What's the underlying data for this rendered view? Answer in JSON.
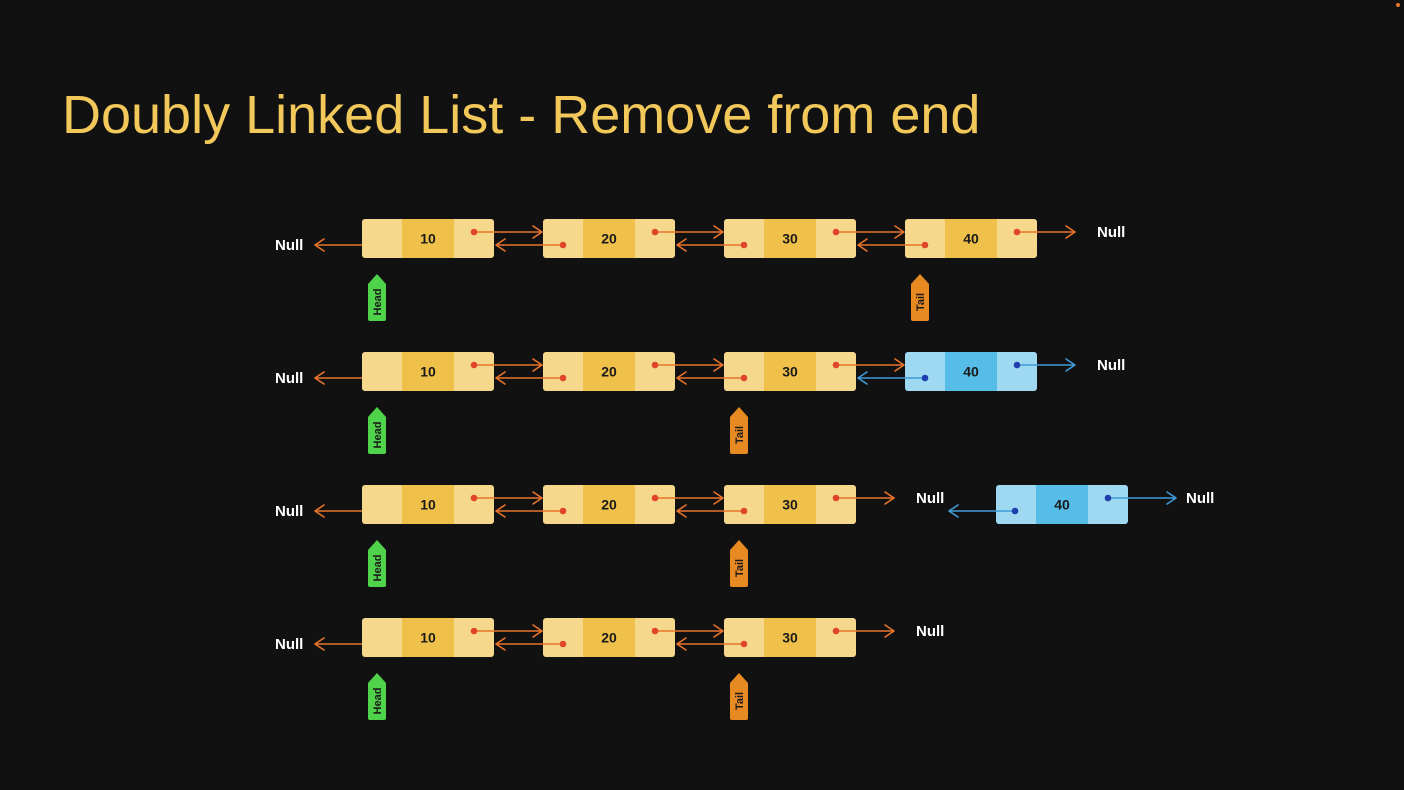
{
  "title": "Doubly Linked List - Remove from end",
  "labels": {
    "null": "Null",
    "head": "Head",
    "tail": "Tail"
  },
  "colors": {
    "title": "#f2c85b",
    "node_side": "#f5d88c",
    "node_mid": "#efc14a",
    "node_removed_side": "#9fd8f1",
    "node_removed_mid": "#55bde8",
    "pointer": "#e8742a",
    "pointer_dot": "#e0452b",
    "pointer_removed": "#3f9bd8",
    "pointer_removed_dot": "#1f3fae",
    "head_tag": "#4fd34a",
    "tail_tag": "#e88a22"
  },
  "rows": [
    {
      "nodes": [
        {
          "value": "10",
          "removed": false
        },
        {
          "value": "20",
          "removed": false
        },
        {
          "value": "30",
          "removed": false
        },
        {
          "value": "40",
          "removed": false
        }
      ],
      "head_index": 0,
      "tail_index": 3,
      "detached": null
    },
    {
      "nodes": [
        {
          "value": "10",
          "removed": false
        },
        {
          "value": "20",
          "removed": false
        },
        {
          "value": "30",
          "removed": false
        },
        {
          "value": "40",
          "removed": true
        }
      ],
      "head_index": 0,
      "tail_index": 2,
      "detached": null
    },
    {
      "nodes": [
        {
          "value": "10",
          "removed": false
        },
        {
          "value": "20",
          "removed": false
        },
        {
          "value": "30",
          "removed": false
        }
      ],
      "head_index": 0,
      "tail_index": 2,
      "detached": {
        "value": "40"
      }
    },
    {
      "nodes": [
        {
          "value": "10",
          "removed": false
        },
        {
          "value": "20",
          "removed": false
        },
        {
          "value": "30",
          "removed": false
        }
      ],
      "head_index": 0,
      "tail_index": 2,
      "detached": null
    }
  ]
}
